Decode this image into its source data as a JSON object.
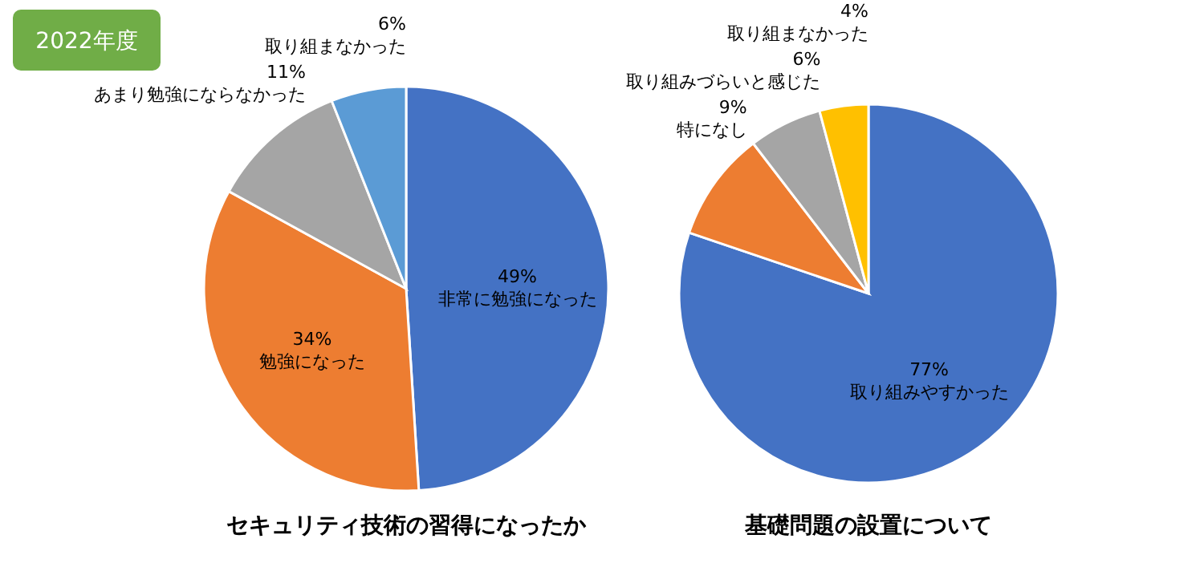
{
  "chart_data": [
    {
      "type": "other",
      "title": "2022年度"
    },
    {
      "type": "pie",
      "title": "セキュリティ技術の習得になったか",
      "categories": [
        "非常に勉強になった",
        "勉強になった",
        "あまり勉強にならなかった",
        "取り組まなかった"
      ],
      "values": [
        49,
        34,
        11,
        6
      ],
      "value_labels": [
        "49%",
        "34%",
        "11%",
        "6%"
      ],
      "colors": [
        "#4472c4",
        "#ed7d31",
        "#a5a5a5",
        "#5b9bd5"
      ]
    },
    {
      "type": "pie",
      "title": "基礎問題の設置について",
      "categories": [
        "取り組みやすかった",
        "特になし",
        "取り組みづらいと感じた",
        "取り組まなかった"
      ],
      "values": [
        77,
        9,
        6,
        4
      ],
      "value_labels": [
        "77%",
        "9%",
        "6%",
        "4%"
      ],
      "colors": [
        "#4472c4",
        "#ed7d31",
        "#a5a5a5",
        "#ffc000"
      ]
    }
  ]
}
